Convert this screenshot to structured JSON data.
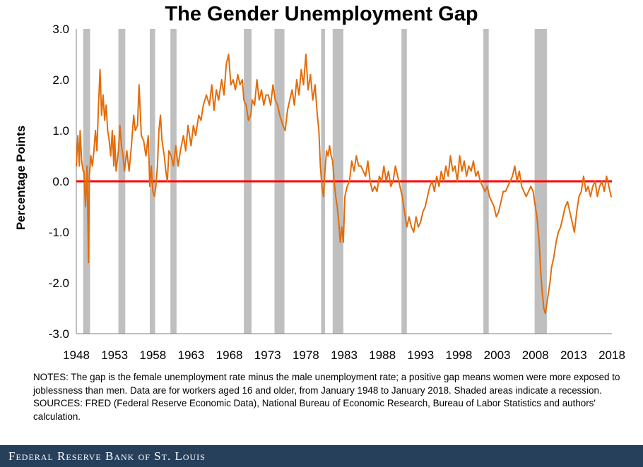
{
  "chart_data": {
    "type": "line",
    "title": "The Gender Unemployment Gap",
    "ylabel": "Percentage Points",
    "xlabel": "",
    "ylim": [
      -3.0,
      3.0
    ],
    "xlim": [
      1948.0,
      2018.0
    ],
    "yticks": [
      "3.0",
      "2.0",
      "1.0",
      "0.0",
      "-1.0",
      "-2.0",
      "-3.0"
    ],
    "xticks": [
      "1948",
      "1953",
      "1958",
      "1963",
      "1968",
      "1973",
      "1978",
      "1983",
      "1988",
      "1993",
      "1998",
      "2003",
      "2008",
      "2013",
      "2018"
    ],
    "grid": false,
    "zero_line_color": "#ff0000",
    "series_color": "#e36c0a",
    "recession_color": "#bfbfbf",
    "recessions": [
      [
        1948.9,
        1949.8
      ],
      [
        1953.5,
        1954.4
      ],
      [
        1957.6,
        1958.3
      ],
      [
        1960.3,
        1961.1
      ],
      [
        1969.9,
        1970.9
      ],
      [
        1973.9,
        1975.2
      ],
      [
        1980.0,
        1980.5
      ],
      [
        1981.5,
        1982.9
      ],
      [
        1990.5,
        1991.2
      ],
      [
        2001.2,
        2001.9
      ],
      [
        2007.9,
        2009.5
      ]
    ],
    "series": [
      {
        "values": [
          [
            1948.0,
            0.3
          ],
          [
            1948.2,
            0.9
          ],
          [
            1948.4,
            0.3
          ],
          [
            1948.5,
            1.0
          ],
          [
            1948.7,
            0.4
          ],
          [
            1948.9,
            0.2
          ],
          [
            1949.0,
            0.2
          ],
          [
            1949.2,
            -0.5
          ],
          [
            1949.4,
            0.3
          ],
          [
            1949.6,
            -1.6
          ],
          [
            1949.7,
            0.1
          ],
          [
            1949.9,
            0.5
          ],
          [
            1950.1,
            0.3
          ],
          [
            1950.3,
            0.6
          ],
          [
            1950.5,
            1.0
          ],
          [
            1950.7,
            0.6
          ],
          [
            1950.9,
            1.5
          ],
          [
            1951.1,
            2.2
          ],
          [
            1951.3,
            1.3
          ],
          [
            1951.5,
            1.7
          ],
          [
            1951.7,
            1.2
          ],
          [
            1951.9,
            1.5
          ],
          [
            1952.1,
            1.0
          ],
          [
            1952.3,
            0.8
          ],
          [
            1952.5,
            0.5
          ],
          [
            1952.7,
            1.0
          ],
          [
            1952.9,
            0.3
          ],
          [
            1953.0,
            0.9
          ],
          [
            1953.2,
            0.2
          ],
          [
            1953.5,
            0.6
          ],
          [
            1953.7,
            1.1
          ],
          [
            1953.9,
            0.7
          ],
          [
            1954.1,
            0.5
          ],
          [
            1954.3,
            0.2
          ],
          [
            1954.6,
            0.6
          ],
          [
            1954.9,
            0.2
          ],
          [
            1955.2,
            0.7
          ],
          [
            1955.5,
            1.3
          ],
          [
            1955.7,
            1.0
          ],
          [
            1956.0,
            1.1
          ],
          [
            1956.2,
            1.9
          ],
          [
            1956.5,
            0.9
          ],
          [
            1956.8,
            0.8
          ],
          [
            1957.1,
            0.5
          ],
          [
            1957.4,
            0.9
          ],
          [
            1957.6,
            -0.1
          ],
          [
            1957.8,
            0.3
          ],
          [
            1958.0,
            -0.2
          ],
          [
            1958.2,
            -0.3
          ],
          [
            1958.4,
            -0.1
          ],
          [
            1958.6,
            0.3
          ],
          [
            1958.8,
            1.0
          ],
          [
            1959.0,
            1.3
          ],
          [
            1959.2,
            0.8
          ],
          [
            1959.5,
            0.5
          ],
          [
            1959.7,
            0.2
          ],
          [
            1959.9,
            0.0
          ],
          [
            1960.1,
            0.6
          ],
          [
            1960.4,
            0.5
          ],
          [
            1960.7,
            0.3
          ],
          [
            1961.0,
            0.7
          ],
          [
            1961.3,
            0.3
          ],
          [
            1961.6,
            0.6
          ],
          [
            1962.0,
            0.9
          ],
          [
            1962.3,
            0.6
          ],
          [
            1962.6,
            1.1
          ],
          [
            1963.0,
            0.7
          ],
          [
            1963.3,
            1.1
          ],
          [
            1963.6,
            0.9
          ],
          [
            1964.0,
            1.3
          ],
          [
            1964.3,
            1.2
          ],
          [
            1964.6,
            1.5
          ],
          [
            1965.0,
            1.7
          ],
          [
            1965.4,
            1.5
          ],
          [
            1965.7,
            1.9
          ],
          [
            1966.0,
            1.4
          ],
          [
            1966.3,
            1.8
          ],
          [
            1966.6,
            1.6
          ],
          [
            1967.0,
            2.0
          ],
          [
            1967.3,
            1.7
          ],
          [
            1967.6,
            2.3
          ],
          [
            1967.9,
            2.5
          ],
          [
            1968.2,
            1.9
          ],
          [
            1968.5,
            2.0
          ],
          [
            1968.8,
            1.8
          ],
          [
            1969.1,
            2.1
          ],
          [
            1969.4,
            1.9
          ],
          [
            1969.7,
            2.0
          ],
          [
            1969.9,
            1.6
          ],
          [
            1970.2,
            1.5
          ],
          [
            1970.5,
            1.2
          ],
          [
            1970.8,
            1.3
          ],
          [
            1971.0,
            1.6
          ],
          [
            1971.3,
            1.5
          ],
          [
            1971.6,
            2.0
          ],
          [
            1971.9,
            1.6
          ],
          [
            1972.2,
            1.8
          ],
          [
            1972.5,
            1.5
          ],
          [
            1972.8,
            1.7
          ],
          [
            1973.1,
            1.7
          ],
          [
            1973.4,
            1.5
          ],
          [
            1973.7,
            1.9
          ],
          [
            1974.0,
            1.6
          ],
          [
            1974.3,
            1.5
          ],
          [
            1974.6,
            1.3
          ],
          [
            1975.0,
            1.1
          ],
          [
            1975.3,
            1.0
          ],
          [
            1975.6,
            1.4
          ],
          [
            1975.9,
            1.6
          ],
          [
            1976.2,
            1.8
          ],
          [
            1976.5,
            1.5
          ],
          [
            1976.8,
            2.0
          ],
          [
            1977.1,
            1.7
          ],
          [
            1977.4,
            2.2
          ],
          [
            1977.7,
            1.9
          ],
          [
            1978.0,
            2.5
          ],
          [
            1978.3,
            1.8
          ],
          [
            1978.6,
            2.1
          ],
          [
            1978.9,
            1.6
          ],
          [
            1979.2,
            1.9
          ],
          [
            1979.5,
            1.3
          ],
          [
            1979.7,
            1.0
          ],
          [
            1979.9,
            0.3
          ],
          [
            1980.1,
            -0.1
          ],
          [
            1980.3,
            -0.3
          ],
          [
            1980.5,
            0.2
          ],
          [
            1980.7,
            0.6
          ],
          [
            1980.9,
            0.5
          ],
          [
            1981.1,
            0.7
          ],
          [
            1981.3,
            0.5
          ],
          [
            1981.5,
            0.4
          ],
          [
            1981.7,
            0.0
          ],
          [
            1981.9,
            -0.3
          ],
          [
            1982.1,
            -0.5
          ],
          [
            1982.3,
            -0.8
          ],
          [
            1982.5,
            -1.2
          ],
          [
            1982.7,
            -0.9
          ],
          [
            1982.9,
            -1.2
          ],
          [
            1983.1,
            -0.3
          ],
          [
            1983.4,
            -0.1
          ],
          [
            1983.7,
            0.0
          ],
          [
            1984.0,
            0.4
          ],
          [
            1984.3,
            0.2
          ],
          [
            1984.6,
            0.5
          ],
          [
            1984.9,
            0.3
          ],
          [
            1985.2,
            0.3
          ],
          [
            1985.5,
            0.2
          ],
          [
            1985.8,
            0.1
          ],
          [
            1986.1,
            0.4
          ],
          [
            1986.4,
            0.0
          ],
          [
            1986.7,
            -0.2
          ],
          [
            1987.0,
            -0.1
          ],
          [
            1987.3,
            -0.2
          ],
          [
            1987.6,
            0.1
          ],
          [
            1987.9,
            0.0
          ],
          [
            1988.2,
            0.3
          ],
          [
            1988.5,
            0.0
          ],
          [
            1988.8,
            0.2
          ],
          [
            1989.1,
            -0.1
          ],
          [
            1989.4,
            0.0
          ],
          [
            1989.7,
            0.3
          ],
          [
            1990.0,
            0.1
          ],
          [
            1990.3,
            -0.1
          ],
          [
            1990.6,
            -0.3
          ],
          [
            1990.9,
            -0.6
          ],
          [
            1991.2,
            -0.9
          ],
          [
            1991.5,
            -0.7
          ],
          [
            1991.8,
            -0.9
          ],
          [
            1992.1,
            -1.0
          ],
          [
            1992.4,
            -0.7
          ],
          [
            1992.7,
            -0.9
          ],
          [
            1993.0,
            -0.8
          ],
          [
            1993.3,
            -0.6
          ],
          [
            1993.6,
            -0.5
          ],
          [
            1993.9,
            -0.3
          ],
          [
            1994.2,
            -0.1
          ],
          [
            1994.5,
            0.0
          ],
          [
            1994.8,
            -0.2
          ],
          [
            1995.1,
            0.1
          ],
          [
            1995.4,
            -0.1
          ],
          [
            1995.7,
            0.2
          ],
          [
            1996.0,
            0.0
          ],
          [
            1996.3,
            0.3
          ],
          [
            1996.6,
            0.1
          ],
          [
            1996.9,
            0.5
          ],
          [
            1997.2,
            0.2
          ],
          [
            1997.5,
            0.3
          ],
          [
            1997.8,
            0.0
          ],
          [
            1998.1,
            0.5
          ],
          [
            1998.4,
            0.2
          ],
          [
            1998.7,
            0.4
          ],
          [
            1999.0,
            0.1
          ],
          [
            1999.3,
            0.3
          ],
          [
            1999.6,
            0.2
          ],
          [
            1999.9,
            0.4
          ],
          [
            2000.2,
            0.1
          ],
          [
            2000.5,
            0.2
          ],
          [
            2000.8,
            0.0
          ],
          [
            2001.1,
            -0.1
          ],
          [
            2001.4,
            -0.2
          ],
          [
            2001.7,
            -0.1
          ],
          [
            2002.0,
            -0.3
          ],
          [
            2002.3,
            -0.4
          ],
          [
            2002.6,
            -0.5
          ],
          [
            2002.9,
            -0.7
          ],
          [
            2003.2,
            -0.6
          ],
          [
            2003.5,
            -0.4
          ],
          [
            2003.8,
            -0.2
          ],
          [
            2004.1,
            -0.2
          ],
          [
            2004.4,
            -0.1
          ],
          [
            2004.7,
            0.0
          ],
          [
            2005.0,
            0.1
          ],
          [
            2005.3,
            0.3
          ],
          [
            2005.6,
            0.0
          ],
          [
            2005.9,
            0.2
          ],
          [
            2006.2,
            -0.1
          ],
          [
            2006.5,
            -0.2
          ],
          [
            2006.8,
            -0.3
          ],
          [
            2007.1,
            -0.2
          ],
          [
            2007.4,
            -0.1
          ],
          [
            2007.7,
            -0.2
          ],
          [
            2007.9,
            -0.4
          ],
          [
            2008.2,
            -0.7
          ],
          [
            2008.5,
            -1.2
          ],
          [
            2008.7,
            -1.8
          ],
          [
            2008.9,
            -2.2
          ],
          [
            2009.1,
            -2.5
          ],
          [
            2009.3,
            -2.6
          ],
          [
            2009.5,
            -2.4
          ],
          [
            2009.7,
            -2.2
          ],
          [
            2009.9,
            -2.0
          ],
          [
            2010.1,
            -1.7
          ],
          [
            2010.4,
            -1.5
          ],
          [
            2010.7,
            -1.2
          ],
          [
            2011.0,
            -1.0
          ],
          [
            2011.3,
            -0.9
          ],
          [
            2011.6,
            -0.7
          ],
          [
            2011.9,
            -0.5
          ],
          [
            2012.2,
            -0.4
          ],
          [
            2012.5,
            -0.6
          ],
          [
            2012.8,
            -0.8
          ],
          [
            2013.1,
            -1.0
          ],
          [
            2013.4,
            -0.6
          ],
          [
            2013.7,
            -0.3
          ],
          [
            2014.0,
            -0.2
          ],
          [
            2014.3,
            0.1
          ],
          [
            2014.6,
            -0.2
          ],
          [
            2014.9,
            -0.1
          ],
          [
            2015.2,
            -0.3
          ],
          [
            2015.5,
            -0.1
          ],
          [
            2015.8,
            0.0
          ],
          [
            2016.1,
            -0.3
          ],
          [
            2016.4,
            -0.1
          ],
          [
            2016.7,
            0.0
          ],
          [
            2017.0,
            -0.2
          ],
          [
            2017.3,
            0.1
          ],
          [
            2017.6,
            -0.1
          ],
          [
            2017.9,
            -0.3
          ],
          [
            2018.0,
            -0.3
          ]
        ]
      }
    ]
  },
  "notes": {
    "notes_line": "NOTES: The gap is the female unemployment  rate minus the male unemployment  rate; a positive gap means women were more exposed to joblessness than men. Data are for workers aged 16 and older, from January 1948 to January 2018. Shaded areas indicate a recession.",
    "sources_line": "SOURCES: FRED (Federal Reserve Economic Data), National Bureau of Economic Research, Bureau of Labor Statistics and authors' calculation."
  },
  "footer": {
    "brand": "Federal Reserve Bank of St. Louis"
  }
}
